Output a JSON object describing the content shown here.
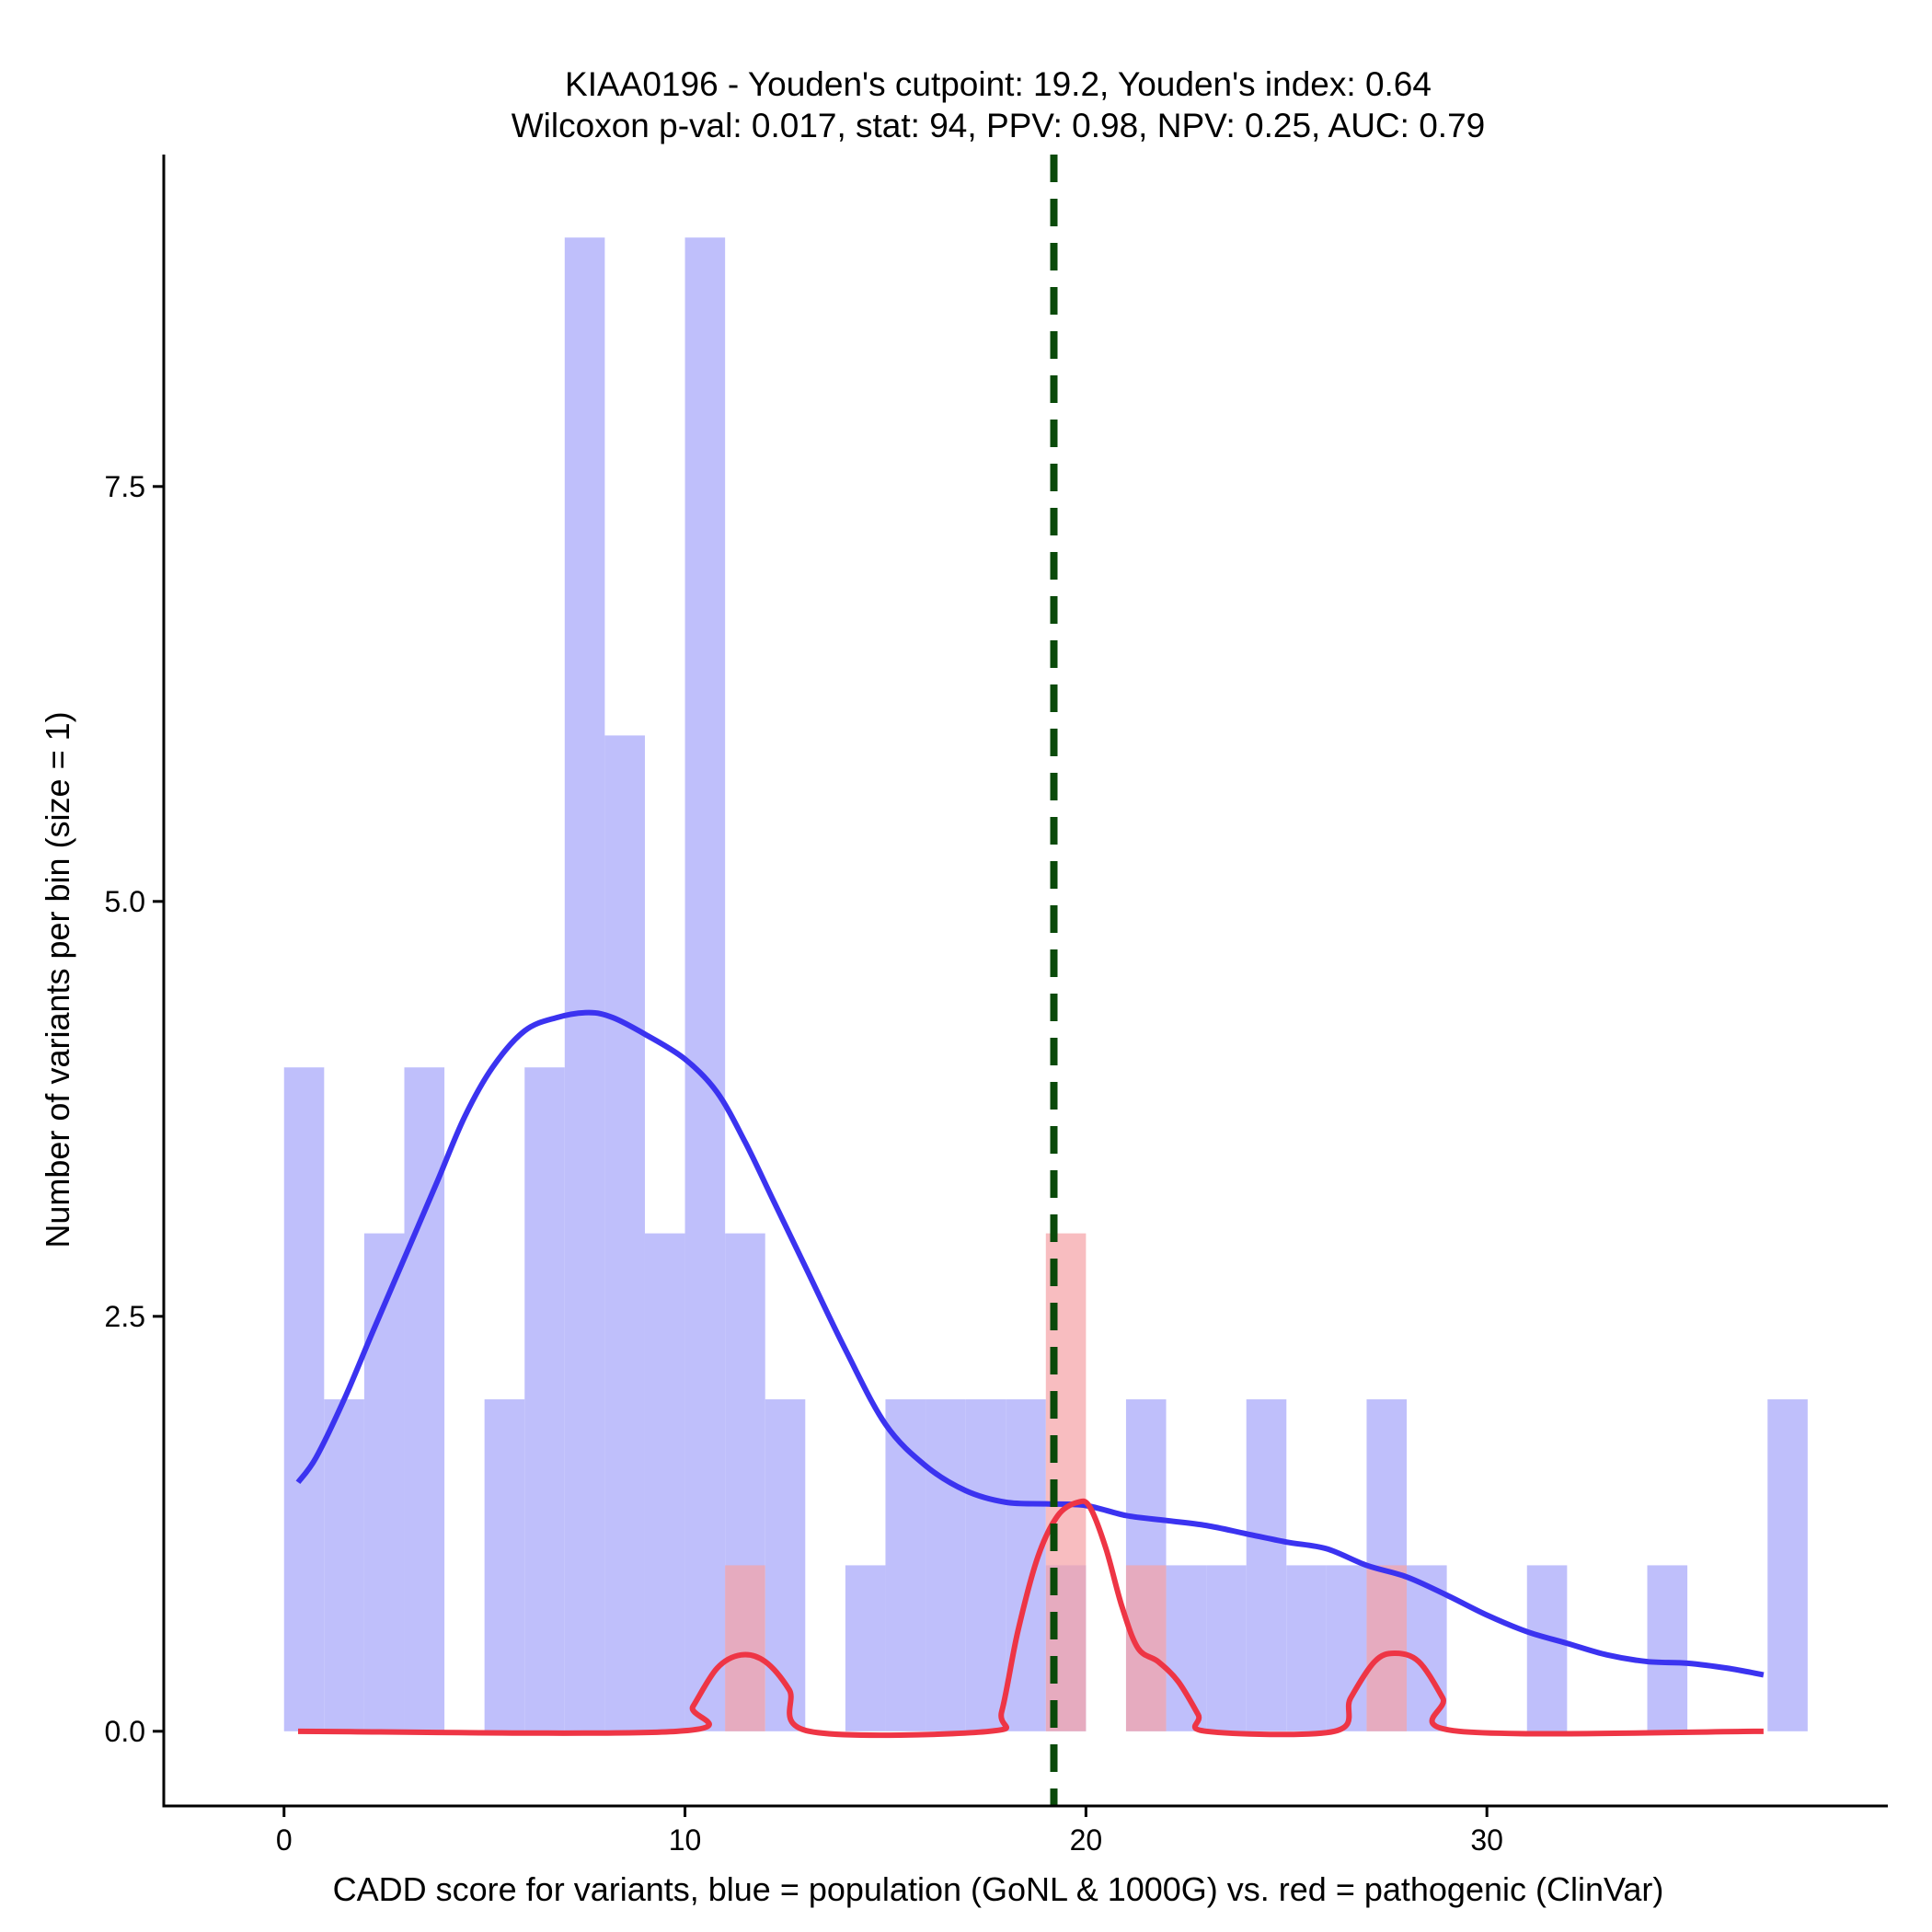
{
  "chart_data": {
    "type": "histogram",
    "title_line1": "KIAA0196 - Youden's cutpoint: 19.2, Youden's index: 0.64",
    "title_line2": "Wilcoxon p-val: 0.017, stat: 94, PPV: 0.98, NPV: 0.25, AUC: 0.79",
    "xlabel": "CADD score for variants, blue = population (GoNL & 1000G) vs. red = pathogenic (ClinVar)",
    "ylabel": "Number of variants per bin (size = 1)",
    "xlim": [
      -3,
      40
    ],
    "ylim": [
      -0.45,
      9.5
    ],
    "x_ticks": [
      0,
      10,
      20,
      30
    ],
    "x_tick_labels": [
      "0",
      "10",
      "20",
      "30"
    ],
    "y_ticks": [
      0,
      2.5,
      5,
      7.5
    ],
    "y_tick_labels": [
      "0.0",
      "2.5",
      "5.0",
      "7.5"
    ],
    "bin_width": 1,
    "cutpoint": 19.2,
    "colors": {
      "population_fill": "#bfbffb",
      "pathogenic_fill": "#f5a3a8",
      "population_curve": "#3b33f0",
      "pathogenic_curve": "#ee3545",
      "cutpoint_line": "#0a4a0a"
    },
    "series": [
      {
        "name": "population (GoNL & 1000G)",
        "bins": [
          {
            "x0": 0,
            "count": 4
          },
          {
            "x0": 1,
            "count": 2
          },
          {
            "x0": 2,
            "count": 3
          },
          {
            "x0": 3,
            "count": 4
          },
          {
            "x0": 5,
            "count": 2
          },
          {
            "x0": 6,
            "count": 4
          },
          {
            "x0": 7,
            "count": 9
          },
          {
            "x0": 8,
            "count": 6
          },
          {
            "x0": 9,
            "count": 3
          },
          {
            "x0": 10,
            "count": 9
          },
          {
            "x0": 11,
            "count": 3
          },
          {
            "x0": 12,
            "count": 2
          },
          {
            "x0": 14,
            "count": 1
          },
          {
            "x0": 15,
            "count": 2
          },
          {
            "x0": 16,
            "count": 2
          },
          {
            "x0": 17,
            "count": 2
          },
          {
            "x0": 18,
            "count": 2
          },
          {
            "x0": 19,
            "count": 1
          },
          {
            "x0": 21,
            "count": 2
          },
          {
            "x0": 22,
            "count": 1
          },
          {
            "x0": 23,
            "count": 1
          },
          {
            "x0": 24,
            "count": 2
          },
          {
            "x0": 25,
            "count": 1
          },
          {
            "x0": 26,
            "count": 1
          },
          {
            "x0": 27,
            "count": 2
          },
          {
            "x0": 28,
            "count": 1
          },
          {
            "x0": 31,
            "count": 1
          },
          {
            "x0": 34,
            "count": 1
          },
          {
            "x0": 37,
            "count": 2
          }
        ],
        "density_curve": [
          [
            0.35,
            1.5
          ],
          [
            0.8,
            1.65
          ],
          [
            1.5,
            2.0
          ],
          [
            2.2,
            2.4
          ],
          [
            3.0,
            2.85
          ],
          [
            3.8,
            3.3
          ],
          [
            4.5,
            3.7
          ],
          [
            5.2,
            4.0
          ],
          [
            6.0,
            4.22
          ],
          [
            6.8,
            4.3
          ],
          [
            7.6,
            4.33
          ],
          [
            8.2,
            4.3
          ],
          [
            9.0,
            4.2
          ],
          [
            10.0,
            4.05
          ],
          [
            10.8,
            3.85
          ],
          [
            11.5,
            3.55
          ],
          [
            12.2,
            3.2
          ],
          [
            13.0,
            2.8
          ],
          [
            14.0,
            2.3
          ],
          [
            15.0,
            1.85
          ],
          [
            16.0,
            1.6
          ],
          [
            17.0,
            1.45
          ],
          [
            18.0,
            1.38
          ],
          [
            19.0,
            1.37
          ],
          [
            20.0,
            1.36
          ],
          [
            21.0,
            1.3
          ],
          [
            22.0,
            1.27
          ],
          [
            23.0,
            1.24
          ],
          [
            24.0,
            1.19
          ],
          [
            25.0,
            1.14
          ],
          [
            26.0,
            1.1
          ],
          [
            27.0,
            1.0
          ],
          [
            28.0,
            0.93
          ],
          [
            29.0,
            0.82
          ],
          [
            30.0,
            0.7
          ],
          [
            31.0,
            0.6
          ],
          [
            32.0,
            0.53
          ],
          [
            33.0,
            0.46
          ],
          [
            34.0,
            0.42
          ],
          [
            35.0,
            0.41
          ],
          [
            36.0,
            0.38
          ],
          [
            36.9,
            0.34
          ]
        ]
      },
      {
        "name": "pathogenic (ClinVar)",
        "bins": [
          {
            "x0": 11,
            "count": 1
          },
          {
            "x0": 19,
            "count": 3
          },
          {
            "x0": 21,
            "count": 1
          },
          {
            "x0": 27,
            "count": 1
          }
        ],
        "density_curve": [
          [
            0.35,
            0.0
          ],
          [
            9.8,
            0.0
          ],
          [
            10.2,
            0.15
          ],
          [
            10.8,
            0.38
          ],
          [
            11.4,
            0.46
          ],
          [
            12.0,
            0.42
          ],
          [
            12.6,
            0.25
          ],
          [
            13.1,
            0.0
          ],
          [
            17.6,
            0.0
          ],
          [
            17.9,
            0.12
          ],
          [
            18.3,
            0.6
          ],
          [
            18.8,
            1.05
          ],
          [
            19.3,
            1.3
          ],
          [
            19.8,
            1.38
          ],
          [
            20.1,
            1.35
          ],
          [
            20.5,
            1.1
          ],
          [
            20.9,
            0.75
          ],
          [
            21.3,
            0.5
          ],
          [
            21.8,
            0.42
          ],
          [
            22.3,
            0.3
          ],
          [
            22.8,
            0.1
          ],
          [
            23.0,
            0.0
          ],
          [
            26.2,
            0.0
          ],
          [
            26.6,
            0.2
          ],
          [
            27.2,
            0.42
          ],
          [
            27.7,
            0.47
          ],
          [
            28.3,
            0.42
          ],
          [
            28.9,
            0.2
          ],
          [
            29.3,
            0.0
          ],
          [
            36.9,
            0.0
          ]
        ]
      }
    ]
  }
}
